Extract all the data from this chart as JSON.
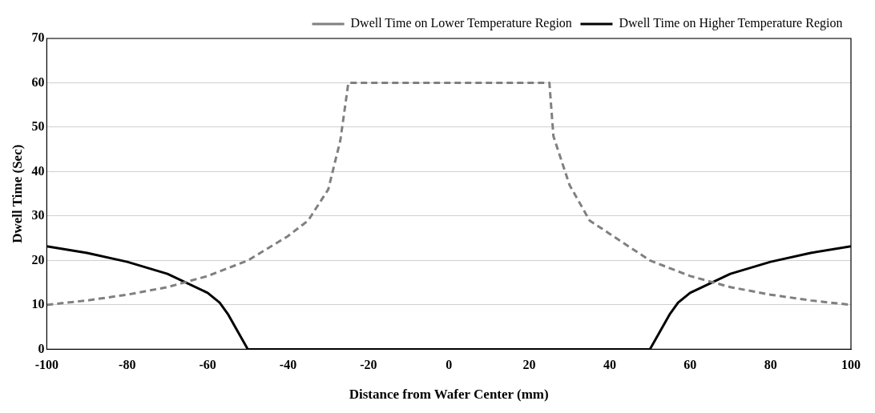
{
  "chart_data": {
    "type": "line",
    "xlabel": "Distance from Wafer Center (mm)",
    "ylabel": "Dwell Time (Sec)",
    "xlim": [
      -100,
      100
    ],
    "xticks": [
      -100,
      -80,
      -60,
      -40,
      -20,
      0,
      20,
      40,
      60,
      80,
      100
    ],
    "ylim": [
      0,
      70
    ],
    "yticks": [
      0,
      10,
      20,
      30,
      40,
      50,
      60,
      70
    ],
    "grid": "y",
    "legend": "top right",
    "marker": "none",
    "series": [
      {
        "name": "Dwell Time on Lower Temperature Region",
        "color": "#808080",
        "line_style": "dashed",
        "x": [
          -100,
          -90,
          -80,
          -70,
          -60,
          -50,
          -40,
          -35,
          -30,
          -27,
          -25,
          25,
          26,
          30,
          35,
          40,
          50,
          60,
          70,
          80,
          90,
          100
        ],
        "values": [
          10,
          11,
          12.3,
          14,
          16.5,
          20,
          25.5,
          29,
          36,
          47,
          60,
          60,
          48,
          37,
          29,
          26,
          20,
          16.5,
          14,
          12.3,
          11,
          10
        ]
      },
      {
        "name": "Dwell Time on Higher Temperature Region",
        "color": "#000000",
        "line_style": "solid",
        "x": [
          -100,
          -90,
          -80,
          -70,
          -60,
          -57,
          -55,
          -50,
          50,
          55,
          57,
          60,
          70,
          80,
          90,
          100
        ],
        "values": [
          23.2,
          21.7,
          19.7,
          17,
          12.7,
          10.5,
          8,
          0,
          0,
          8,
          10.5,
          12.7,
          17,
          19.7,
          21.7,
          23.2
        ]
      }
    ]
  }
}
